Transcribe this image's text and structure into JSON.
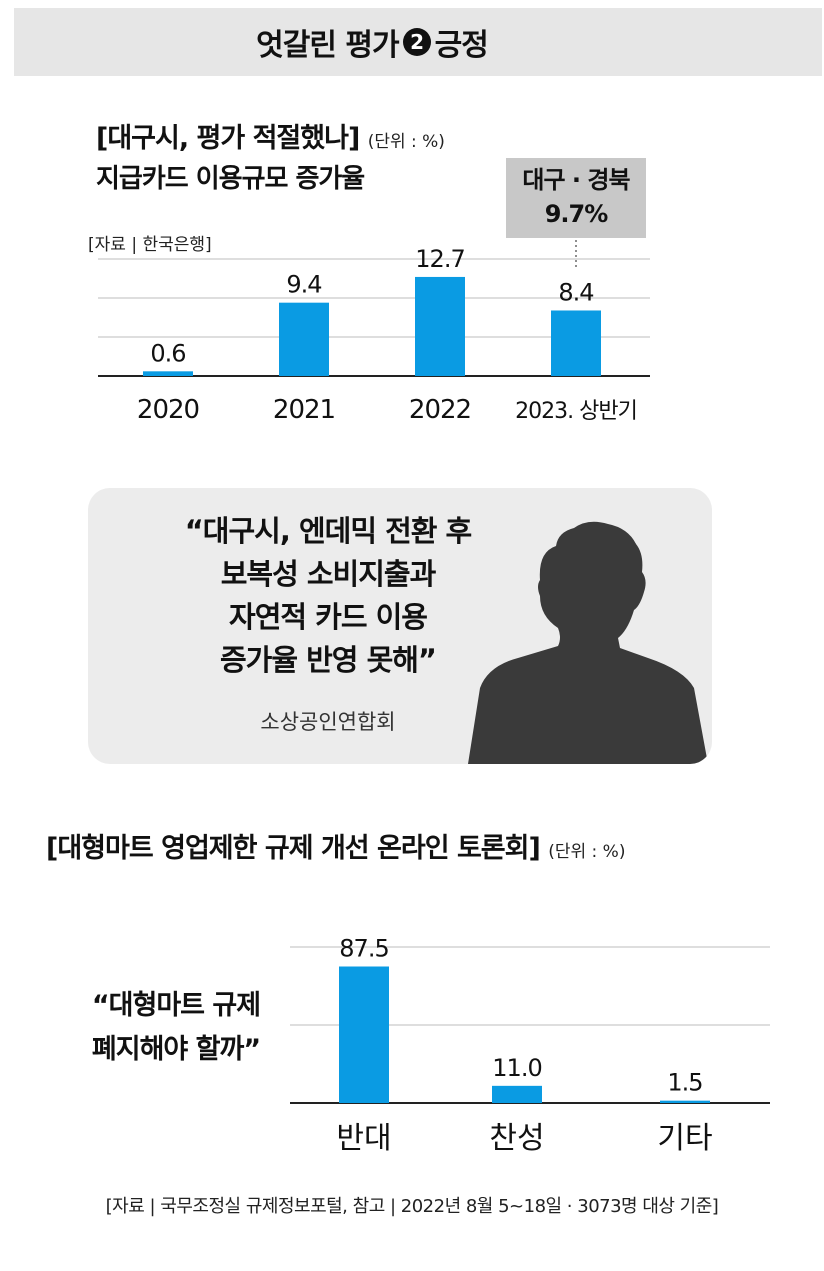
{
  "header": {
    "title_prefix": "엇갈린 평가",
    "title_number": "2",
    "title_suffix": "긍정"
  },
  "chart1": {
    "title": "[대구시, 평가 적절했나]",
    "unit": "(단위 : %)",
    "subtitle": "지급카드 이용규모 증가율",
    "source": "[자료 | 한국은행]",
    "callout_line1": "대구 · 경북",
    "callout_line2": "9.7%"
  },
  "quote1": {
    "lines": [
      "“대구시, 엔데믹 전환 후",
      "보복성 소비지출과",
      "자연적 카드 이용",
      "증가율 반영 못해”"
    ],
    "source": "소상공인연합회"
  },
  "chart2": {
    "title": "[대형마트 영업제한 규제 개선 온라인 토론회]",
    "unit": "(단위 : %)",
    "question_line1": "“대형마트 규제",
    "question_line2": "폐지해야 할까”"
  },
  "footer": {
    "text": "[자료 | 국무조정실 규제정보포털, 참고 | 2022년 8월 5~18일 · 3073명 대상 기준]"
  },
  "colors": {
    "bar": "#0a9be3",
    "header_bg": "#e6e6e6",
    "box_bg": "#ececec",
    "callout_bg": "#c8c8c8"
  },
  "chart_data": [
    {
      "type": "bar",
      "title": "지급카드 이용규모 증가율",
      "categories": [
        "2020",
        "2021",
        "2022",
        "2023. 상반기"
      ],
      "values": [
        0.6,
        9.4,
        12.7,
        8.4
      ],
      "data_labels": [
        "0.6",
        "9.4",
        "12.7",
        "8.4"
      ],
      "annotation": {
        "category": "2023. 상반기",
        "label": "대구 · 경북",
        "value": 9.7,
        "text": "9.7%"
      },
      "unit": "%",
      "ylim": [
        0,
        20
      ],
      "grid": true
    },
    {
      "type": "bar",
      "title": "“대형마트 규제 폐지해야 할까”",
      "categories": [
        "반대",
        "찬성",
        "기타"
      ],
      "values": [
        87.5,
        11.0,
        1.5
      ],
      "data_labels": [
        "87.5",
        "11.0",
        "1.5"
      ],
      "unit": "%",
      "ylim": [
        0,
        100
      ],
      "grid": true
    }
  ]
}
